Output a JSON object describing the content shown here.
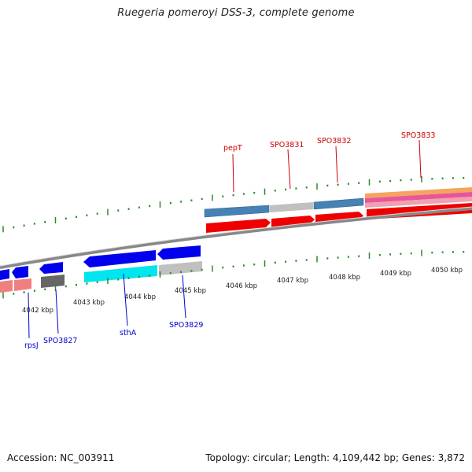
{
  "title": "Ruegeria pomeroyi DSS-3, complete genome",
  "footer": {
    "accession": "Accession: NC_003911",
    "summary": "Topology: circular; Length: 4,109,442 bp; Genes: 3,872"
  },
  "colors": {
    "forward_label": "#cc0000",
    "reverse_label": "#0000cc",
    "tick_green": "#2a8a2a",
    "backbone_gray": "#888888",
    "blue_cds": "#0000ee",
    "cyan_cds": "#00e5ee",
    "red_cds": "#ee0000",
    "steel_blue": "#4682b4",
    "light_gray": "#c0c0c0",
    "dark_gray": "#555555",
    "salmon": "#f08080"
  },
  "kbp_labels": [
    "4042 kbp",
    "4043 kbp",
    "4044 kbp",
    "4045 kbp",
    "4046 kbp",
    "4047 kbp",
    "4048 kbp",
    "4049 kbp",
    "4050 kbp"
  ],
  "forward_genes": [
    "pepT",
    "SPO3831",
    "SPO3832",
    "SPO3833"
  ],
  "reverse_genes": [
    "rpsJ",
    "SPO3827",
    "sthA",
    "SPO3829"
  ]
}
